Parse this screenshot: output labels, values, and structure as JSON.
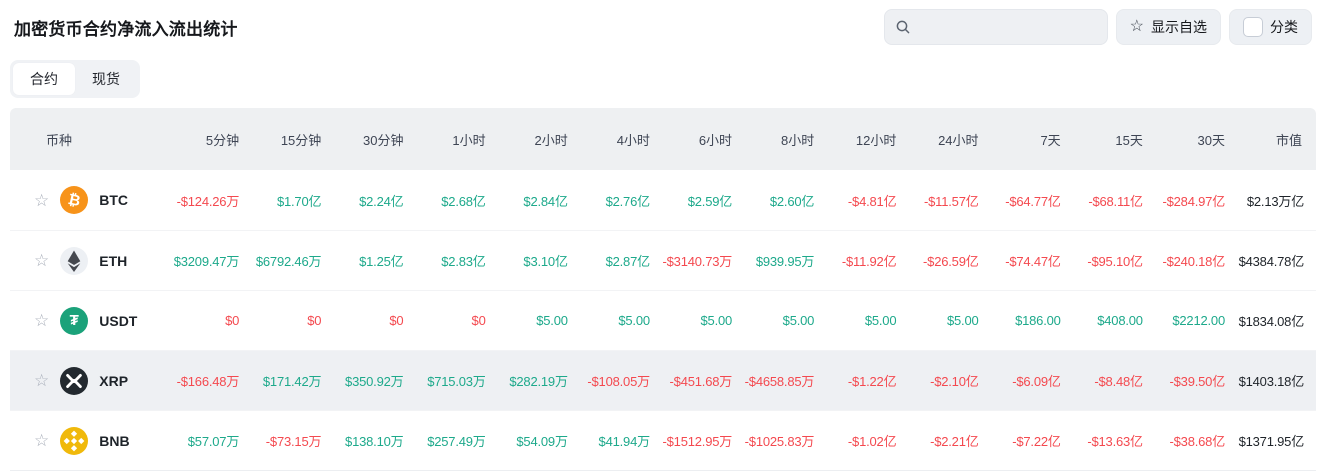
{
  "title": "加密货币合约净流入流出统计",
  "toolbar": {
    "search_value": "",
    "search_placeholder": "",
    "favorites_button": "显示自选",
    "category_button": "分类"
  },
  "tabs": {
    "contract": "合约",
    "spot": "现货",
    "active": "合约"
  },
  "colors": {
    "positive": "#1da98b",
    "negative": "#f4494f",
    "neutral": "#1e2329",
    "btc": "#f7931a",
    "eth_bg": "#edf0f4",
    "eth_glyph": "#45484f",
    "usdt": "#1ba27a",
    "xrp": "#23292f",
    "bnb": "#f0b90b"
  },
  "table": {
    "columns": [
      "币种",
      "5分钟",
      "15分钟",
      "30分钟",
      "1小时",
      "2小时",
      "4小时",
      "6小时",
      "8小时",
      "12小时",
      "24小时",
      "7天",
      "15天",
      "30天",
      "市值"
    ],
    "rows": [
      {
        "symbol": "BTC",
        "icon": "btc",
        "highlighted": false,
        "values": [
          {
            "t": "-$124.26万",
            "s": "neg"
          },
          {
            "t": "$1.70亿",
            "s": "pos"
          },
          {
            "t": "$2.24亿",
            "s": "pos"
          },
          {
            "t": "$2.68亿",
            "s": "pos"
          },
          {
            "t": "$2.84亿",
            "s": "pos"
          },
          {
            "t": "$2.76亿",
            "s": "pos"
          },
          {
            "t": "$2.59亿",
            "s": "pos"
          },
          {
            "t": "$2.60亿",
            "s": "pos"
          },
          {
            "t": "-$4.81亿",
            "s": "neg"
          },
          {
            "t": "-$11.57亿",
            "s": "neg"
          },
          {
            "t": "-$64.77亿",
            "s": "neg"
          },
          {
            "t": "-$68.11亿",
            "s": "neg"
          },
          {
            "t": "-$284.97亿",
            "s": "neg"
          }
        ],
        "market_cap": "$2.13万亿"
      },
      {
        "symbol": "ETH",
        "icon": "eth",
        "highlighted": false,
        "values": [
          {
            "t": "$3209.47万",
            "s": "pos"
          },
          {
            "t": "$6792.46万",
            "s": "pos"
          },
          {
            "t": "$1.25亿",
            "s": "pos"
          },
          {
            "t": "$2.83亿",
            "s": "pos"
          },
          {
            "t": "$3.10亿",
            "s": "pos"
          },
          {
            "t": "$2.87亿",
            "s": "pos"
          },
          {
            "t": "-$3140.73万",
            "s": "neg"
          },
          {
            "t": "$939.95万",
            "s": "pos"
          },
          {
            "t": "-$11.92亿",
            "s": "neg"
          },
          {
            "t": "-$26.59亿",
            "s": "neg"
          },
          {
            "t": "-$74.47亿",
            "s": "neg"
          },
          {
            "t": "-$95.10亿",
            "s": "neg"
          },
          {
            "t": "-$240.18亿",
            "s": "neg"
          }
        ],
        "market_cap": "$4384.78亿"
      },
      {
        "symbol": "USDT",
        "icon": "usdt",
        "highlighted": false,
        "values": [
          {
            "t": "$0",
            "s": "neg"
          },
          {
            "t": "$0",
            "s": "neg"
          },
          {
            "t": "$0",
            "s": "neg"
          },
          {
            "t": "$0",
            "s": "neg"
          },
          {
            "t": "$5.00",
            "s": "pos"
          },
          {
            "t": "$5.00",
            "s": "pos"
          },
          {
            "t": "$5.00",
            "s": "pos"
          },
          {
            "t": "$5.00",
            "s": "pos"
          },
          {
            "t": "$5.00",
            "s": "pos"
          },
          {
            "t": "$5.00",
            "s": "pos"
          },
          {
            "t": "$186.00",
            "s": "pos"
          },
          {
            "t": "$408.00",
            "s": "pos"
          },
          {
            "t": "$2212.00",
            "s": "pos"
          }
        ],
        "market_cap": "$1834.08亿"
      },
      {
        "symbol": "XRP",
        "icon": "xrp",
        "highlighted": true,
        "values": [
          {
            "t": "-$166.48万",
            "s": "neg"
          },
          {
            "t": "$171.42万",
            "s": "pos"
          },
          {
            "t": "$350.92万",
            "s": "pos"
          },
          {
            "t": "$715.03万",
            "s": "pos"
          },
          {
            "t": "$282.19万",
            "s": "pos"
          },
          {
            "t": "-$108.05万",
            "s": "neg"
          },
          {
            "t": "-$451.68万",
            "s": "neg"
          },
          {
            "t": "-$4658.85万",
            "s": "neg"
          },
          {
            "t": "-$1.22亿",
            "s": "neg"
          },
          {
            "t": "-$2.10亿",
            "s": "neg"
          },
          {
            "t": "-$6.09亿",
            "s": "neg"
          },
          {
            "t": "-$8.48亿",
            "s": "neg"
          },
          {
            "t": "-$39.50亿",
            "s": "neg"
          }
        ],
        "market_cap": "$1403.18亿"
      },
      {
        "symbol": "BNB",
        "icon": "bnb",
        "highlighted": false,
        "values": [
          {
            "t": "$57.07万",
            "s": "pos"
          },
          {
            "t": "-$73.15万",
            "s": "neg"
          },
          {
            "t": "$138.10万",
            "s": "pos"
          },
          {
            "t": "$257.49万",
            "s": "pos"
          },
          {
            "t": "$54.09万",
            "s": "pos"
          },
          {
            "t": "$41.94万",
            "s": "pos"
          },
          {
            "t": "-$1512.95万",
            "s": "neg"
          },
          {
            "t": "-$1025.83万",
            "s": "neg"
          },
          {
            "t": "-$1.02亿",
            "s": "neg"
          },
          {
            "t": "-$2.21亿",
            "s": "neg"
          },
          {
            "t": "-$7.22亿",
            "s": "neg"
          },
          {
            "t": "-$13.63亿",
            "s": "neg"
          },
          {
            "t": "-$38.68亿",
            "s": "neg"
          }
        ],
        "market_cap": "$1371.95亿"
      }
    ]
  }
}
